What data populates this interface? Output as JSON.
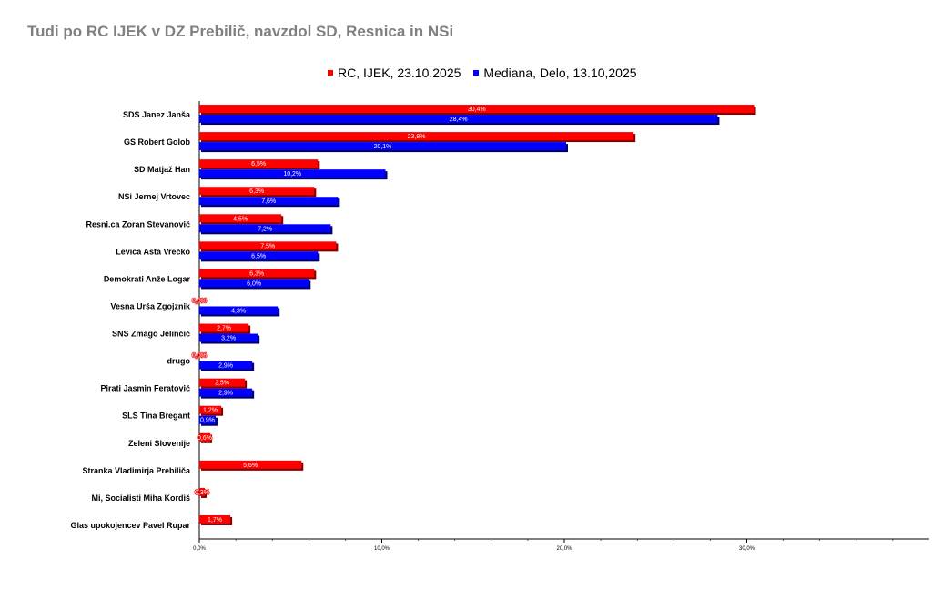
{
  "chart_data": {
    "type": "bar",
    "orientation": "horizontal",
    "title": "Tudi po RC IJEK v DZ Prebilič, navzdol SD, Resnica in NSi",
    "categories": [
      "SDS Janez Janša",
      "GS Robert Golob",
      "SD Matjaž Han",
      "NSi Jernej Vrtovec",
      "Resni.ca Zoran Stevanović",
      "Levica  Asta Vrečko",
      "Demokrati Anže Logar",
      "Vesna Urša Zgojznik",
      "SNS Zmago Jelinčič",
      "drugo",
      "Pirati Jasmin Feratović",
      "SLS Tina Bregant",
      "Zeleni Slovenije",
      "Stranka Vladimirja Prebiliča",
      "Mi, Socialisti Miha Kordiš",
      "Glas upokojencev Pavel Rupar"
    ],
    "series": [
      {
        "name": "RC, IJEK, 23.10.2025",
        "color": "#ff0000",
        "values": [
          30.4,
          23.8,
          6.5,
          6.3,
          4.5,
          7.5,
          6.3,
          0.0,
          2.7,
          0.0,
          2.5,
          1.2,
          0.6,
          5.6,
          0.3,
          1.7
        ],
        "labels": [
          "30,4%",
          "23,8%",
          "6,5%",
          "6,3%",
          "4,5%",
          "7,5%",
          "6,3%",
          "0,0%",
          "2,7%",
          "0,0%",
          "2,5%",
          "1,2%",
          "0,6%",
          "5,6%",
          "0,3%",
          "1,7%"
        ]
      },
      {
        "name": "Mediana, Delo, 13.10,2025",
        "color": "#0000ff",
        "values": [
          28.4,
          20.1,
          10.2,
          7.6,
          7.2,
          6.5,
          6.0,
          4.3,
          3.2,
          2.9,
          2.9,
          0.9,
          null,
          null,
          null,
          null
        ],
        "labels": [
          "28,4%",
          "20,1%",
          "10,2%",
          "7,6%",
          "7,2%",
          "6,5%",
          "6,0%",
          "4,3%",
          "3,2%",
          "2,9%",
          "2,9%",
          "0,9%",
          null,
          null,
          null,
          null
        ]
      }
    ],
    "xlim": [
      0,
      40
    ],
    "xticks": [
      "0,0%",
      "10,0%",
      "20,0%",
      "30,0%"
    ],
    "xtick_values": [
      0,
      10,
      20,
      30
    ],
    "grid": false,
    "legend_position": "top"
  }
}
